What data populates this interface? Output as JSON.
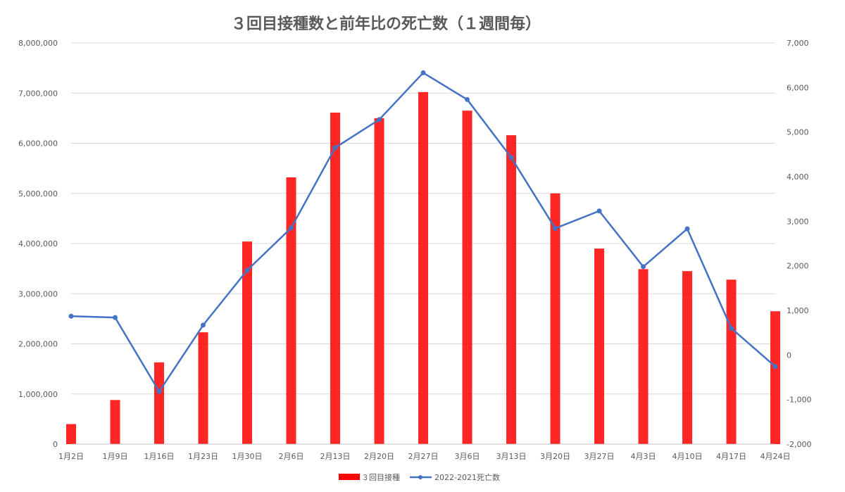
{
  "chart_data": {
    "type": "bar+line",
    "title": "３回目接種数と前年比の死亡数（１週間毎）",
    "categories": [
      "1月2日",
      "1月9日",
      "1月16日",
      "1月23日",
      "1月30日",
      "2月6日",
      "2月13日",
      "2月20日",
      "2月27日",
      "3月6日",
      "3月13日",
      "3月20日",
      "3月27日",
      "4月3日",
      "4月10日",
      "4月17日",
      "4月24日"
    ],
    "series": [
      {
        "name": "３回目接種",
        "type": "bar",
        "axis": "left",
        "color": "#ff0000",
        "values": [
          400000,
          880000,
          1630000,
          2230000,
          4040000,
          5320000,
          6610000,
          6500000,
          7020000,
          6650000,
          6160000,
          5000000,
          3900000,
          3490000,
          3450000,
          3280000,
          2650000
        ]
      },
      {
        "name": "2022-2021死亡数",
        "type": "line",
        "axis": "right",
        "color": "#4472c4",
        "values": [
          870,
          840,
          -820,
          670,
          1900,
          2850,
          4650,
          5280,
          6330,
          5730,
          4430,
          2840,
          3230,
          1980,
          2830,
          600,
          -260
        ]
      }
    ],
    "y_left": {
      "min": 0,
      "max": 8000000,
      "step": 1000000,
      "tick_labels": [
        "0",
        "1,000,000",
        "2,000,000",
        "3,000,000",
        "4,000,000",
        "5,000,000",
        "6,000,000",
        "7,000,000",
        "8,000,000"
      ]
    },
    "y_right": {
      "min": -2000,
      "max": 7000,
      "step": 1000,
      "tick_labels": [
        "-2,000",
        "-1,000",
        "0",
        "1,000",
        "2,000",
        "3,000",
        "4,000",
        "5,000",
        "6,000",
        "7,000"
      ]
    },
    "grid": true,
    "legend_position": "bottom"
  }
}
